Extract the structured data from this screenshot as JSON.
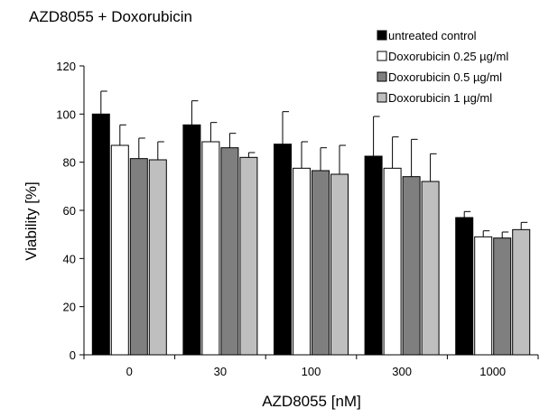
{
  "chart_data": {
    "type": "bar",
    "title": "AZD8055 + Doxorubicin",
    "xlabel": "AZD8055 [nM]",
    "ylabel": "Viability [%]",
    "categories": [
      "0",
      "30",
      "100",
      "300",
      "1000"
    ],
    "ylim": [
      0,
      120
    ],
    "yticks": [
      0,
      20,
      40,
      60,
      80,
      100,
      120
    ],
    "grid": false,
    "legend_position": "top-right",
    "series": [
      {
        "name": "untreated control",
        "color": "#000000",
        "values": [
          100,
          95.5,
          87.5,
          82.5,
          57
        ],
        "errors": [
          9.5,
          10,
          13.5,
          16.5,
          2.5
        ]
      },
      {
        "name": "Doxorubicin 0.25 µg/ml",
        "color": "#ffffff",
        "values": [
          87,
          88.5,
          77.5,
          77.5,
          49
        ],
        "errors": [
          8.5,
          8,
          11,
          13,
          2.5
        ]
      },
      {
        "name": "Doxorubicin 0.5 µg/ml",
        "color": "#7f7f7f",
        "values": [
          81.5,
          86,
          76.5,
          74,
          48.5
        ],
        "errors": [
          8.5,
          6,
          9.5,
          15.5,
          2.5
        ]
      },
      {
        "name": "Doxorubicin 1 µg/ml",
        "color": "#bfbfbf",
        "values": [
          81,
          82,
          75,
          72,
          52
        ],
        "errors": [
          7.5,
          2,
          12,
          11.5,
          3
        ]
      }
    ]
  }
}
